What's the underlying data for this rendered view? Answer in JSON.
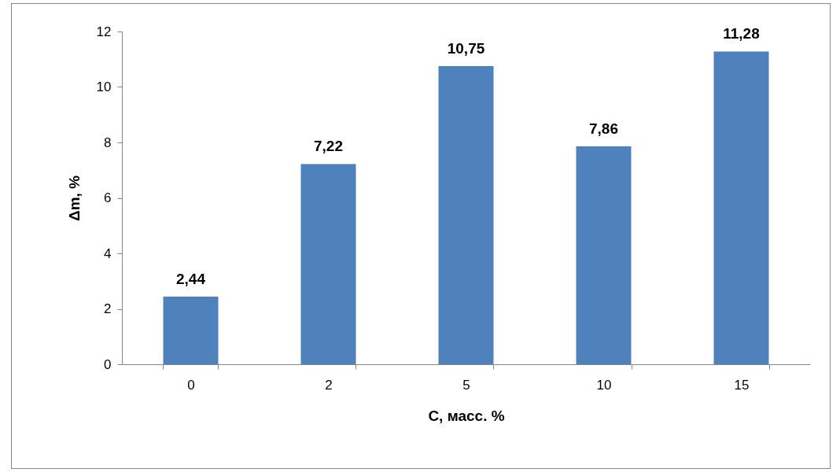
{
  "chart_data": {
    "type": "bar",
    "xlabel": "C, масс. %",
    "ylabel": "Δm, %",
    "categories": [
      "0",
      "2",
      "5",
      "10",
      "15"
    ],
    "values": [
      2.44,
      7.22,
      10.75,
      7.86,
      11.28
    ],
    "value_labels": [
      "2,44",
      "7,22",
      "10,75",
      "7,86",
      "11,28"
    ],
    "color": "#4f81bd",
    "ylim": [
      0,
      12
    ],
    "yticks": [
      0,
      2,
      4,
      6,
      8,
      10,
      12
    ],
    "grid": false
  }
}
